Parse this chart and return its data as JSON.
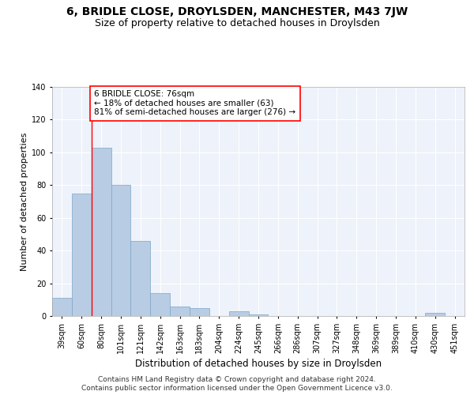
{
  "title": "6, BRIDLE CLOSE, DROYLSDEN, MANCHESTER, M43 7JW",
  "subtitle": "Size of property relative to detached houses in Droylsden",
  "xlabel": "Distribution of detached houses by size in Droylsden",
  "ylabel": "Number of detached properties",
  "footer1": "Contains HM Land Registry data © Crown copyright and database right 2024.",
  "footer2": "Contains public sector information licensed under the Open Government Licence v3.0.",
  "categories": [
    "39sqm",
    "60sqm",
    "80sqm",
    "101sqm",
    "121sqm",
    "142sqm",
    "163sqm",
    "183sqm",
    "204sqm",
    "224sqm",
    "245sqm",
    "266sqm",
    "286sqm",
    "307sqm",
    "327sqm",
    "348sqm",
    "369sqm",
    "389sqm",
    "410sqm",
    "430sqm",
    "451sqm"
  ],
  "values": [
    11,
    75,
    103,
    80,
    46,
    14,
    6,
    5,
    0,
    3,
    1,
    0,
    0,
    0,
    0,
    0,
    0,
    0,
    0,
    2,
    0
  ],
  "bar_color": "#b8cce4",
  "bar_edge_color": "#7ba7c7",
  "red_line_index": 2,
  "annotation_line1": "6 BRIDLE CLOSE: 76sqm",
  "annotation_line2": "← 18% of detached houses are smaller (63)",
  "annotation_line3": "81% of semi-detached houses are larger (276) →",
  "annotation_box_color": "white",
  "annotation_box_edge": "red",
  "ylim": [
    0,
    140
  ],
  "yticks": [
    0,
    20,
    40,
    60,
    80,
    100,
    120,
    140
  ],
  "background_color": "#eef2fa",
  "grid_color": "white",
  "title_fontsize": 10,
  "subtitle_fontsize": 9,
  "xlabel_fontsize": 8.5,
  "ylabel_fontsize": 8,
  "tick_fontsize": 7,
  "annotation_fontsize": 7.5,
  "footer_fontsize": 6.5
}
